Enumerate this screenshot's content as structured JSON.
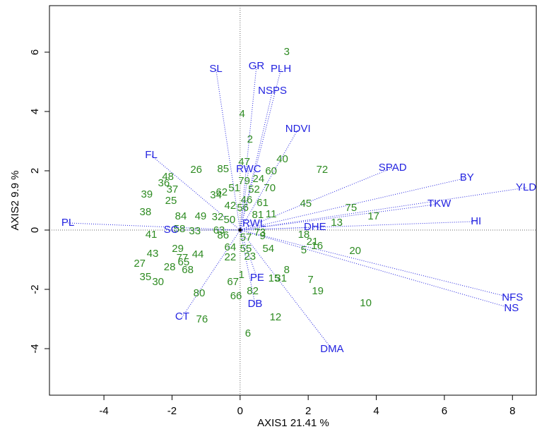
{
  "chart_data": {
    "type": "biplot",
    "x_label": "AXIS1 21.41 %",
    "y_label": "AXIS2 9.9 %",
    "xlim": [
      -5.6,
      8.7
    ],
    "ylim": [
      -5.57,
      7.57
    ],
    "xticks": [
      -4,
      -2,
      0,
      2,
      4,
      6,
      8
    ],
    "yticks": [
      -4,
      -2,
      0,
      2,
      4,
      6
    ],
    "points": {
      "color": "#2e8b22",
      "labels": [
        "3",
        "2",
        "4",
        "40",
        "72",
        "47",
        "85",
        "26",
        "60",
        "79",
        "24",
        "52",
        "70",
        "51",
        "62",
        "34",
        "48",
        "36",
        "37",
        "39",
        "25",
        "38",
        "84",
        "49",
        "41",
        "58",
        "33",
        "29",
        "43",
        "77",
        "44",
        "65",
        "27",
        "68",
        "28",
        "35",
        "30",
        "80",
        "76",
        "66",
        "67",
        "1",
        "82",
        "15",
        "31",
        "8",
        "7",
        "19",
        "10",
        "12",
        "6",
        "20",
        "16",
        "5",
        "21",
        "18",
        "13",
        "17",
        "75",
        "45",
        "54",
        "23",
        "22",
        "64",
        "55",
        "9",
        "73",
        "57",
        "86",
        "63",
        "50",
        "32",
        "42",
        "56",
        "46",
        "61",
        "11",
        "81"
      ],
      "x": [
        1.37,
        0.29,
        0.06,
        1.24,
        2.41,
        0.12,
        -0.5,
        -1.29,
        0.91,
        0.12,
        0.54,
        0.41,
        0.87,
        -0.17,
        -0.54,
        -0.71,
        -2.12,
        -2.24,
        -1.99,
        -2.74,
        -2.03,
        -2.78,
        -1.74,
        -1.16,
        -2.61,
        -1.78,
        -1.33,
        -1.83,
        -2.57,
        -1.7,
        -1.24,
        -1.66,
        -2.95,
        -1.54,
        -2.07,
        -2.78,
        -2.41,
        -1.2,
        -1.12,
        -0.12,
        -0.21,
        0.04,
        0.37,
        1.0,
        1.2,
        1.37,
        2.07,
        2.28,
        3.69,
        1.04,
        0.23,
        3.38,
        2.26,
        1.87,
        2.12,
        1.87,
        2.84,
        3.92,
        3.26,
        1.93,
        0.83,
        0.29,
        -0.29,
        -0.29,
        0.17,
        0.66,
        0.58,
        0.17,
        -0.5,
        -0.62,
        -0.31,
        -0.66,
        -0.29,
        0.08,
        0.19,
        0.66,
        0.91,
        0.52
      ],
      "y": [
        6.0,
        3.05,
        3.9,
        2.38,
        2.02,
        2.29,
        2.05,
        2.02,
        1.98,
        1.64,
        1.71,
        1.36,
        1.4,
        1.4,
        1.26,
        1.17,
        1.79,
        1.57,
        1.36,
        1.19,
        0.98,
        0.6,
        0.45,
        0.45,
        -0.17,
        0.02,
        -0.05,
        -0.64,
        -0.81,
        -0.95,
        -0.83,
        -1.1,
        -1.14,
        -1.36,
        -1.26,
        -1.6,
        -1.76,
        -2.14,
        -3.02,
        -2.24,
        -1.76,
        -1.52,
        -2.07,
        -1.64,
        -1.64,
        -1.36,
        -1.69,
        -2.07,
        -2.48,
        -2.95,
        -3.5,
        -0.71,
        -0.55,
        -0.69,
        -0.4,
        -0.17,
        0.24,
        0.45,
        0.74,
        0.88,
        -0.64,
        -0.9,
        -0.93,
        -0.6,
        -0.64,
        -0.21,
        -0.1,
        -0.26,
        -0.19,
        -0.02,
        0.33,
        0.43,
        0.81,
        0.74,
        1.0,
        0.9,
        0.52,
        0.5
      ]
    },
    "vectors": {
      "color": "#2323e0",
      "labels": [
        "SL",
        "GR",
        "PLH",
        "NSPS",
        "NDVI",
        "SPAD",
        "BY",
        "YLD",
        "TKW",
        "HI",
        "NFS",
        "NS",
        "DMA",
        "DHE",
        "RWL",
        "RWC",
        "PE",
        "DB",
        "CT",
        "FL",
        "SC",
        "PL"
      ],
      "x": [
        -0.71,
        0.48,
        1.2,
        0.95,
        1.7,
        4.48,
        6.66,
        8.4,
        5.85,
        6.93,
        8.0,
        7.97,
        2.7,
        2.2,
        0.41,
        0.25,
        0.5,
        0.44,
        -1.7,
        -2.61,
        -2.03,
        -5.06
      ],
      "y": [
        5.43,
        5.52,
        5.43,
        4.69,
        3.4,
        2.1,
        1.76,
        1.43,
        0.88,
        0.29,
        -2.29,
        -2.64,
        -4.02,
        0.1,
        0.21,
        2.05,
        -1.62,
        -2.5,
        -2.93,
        2.52,
        0.0,
        0.24
      ]
    }
  }
}
